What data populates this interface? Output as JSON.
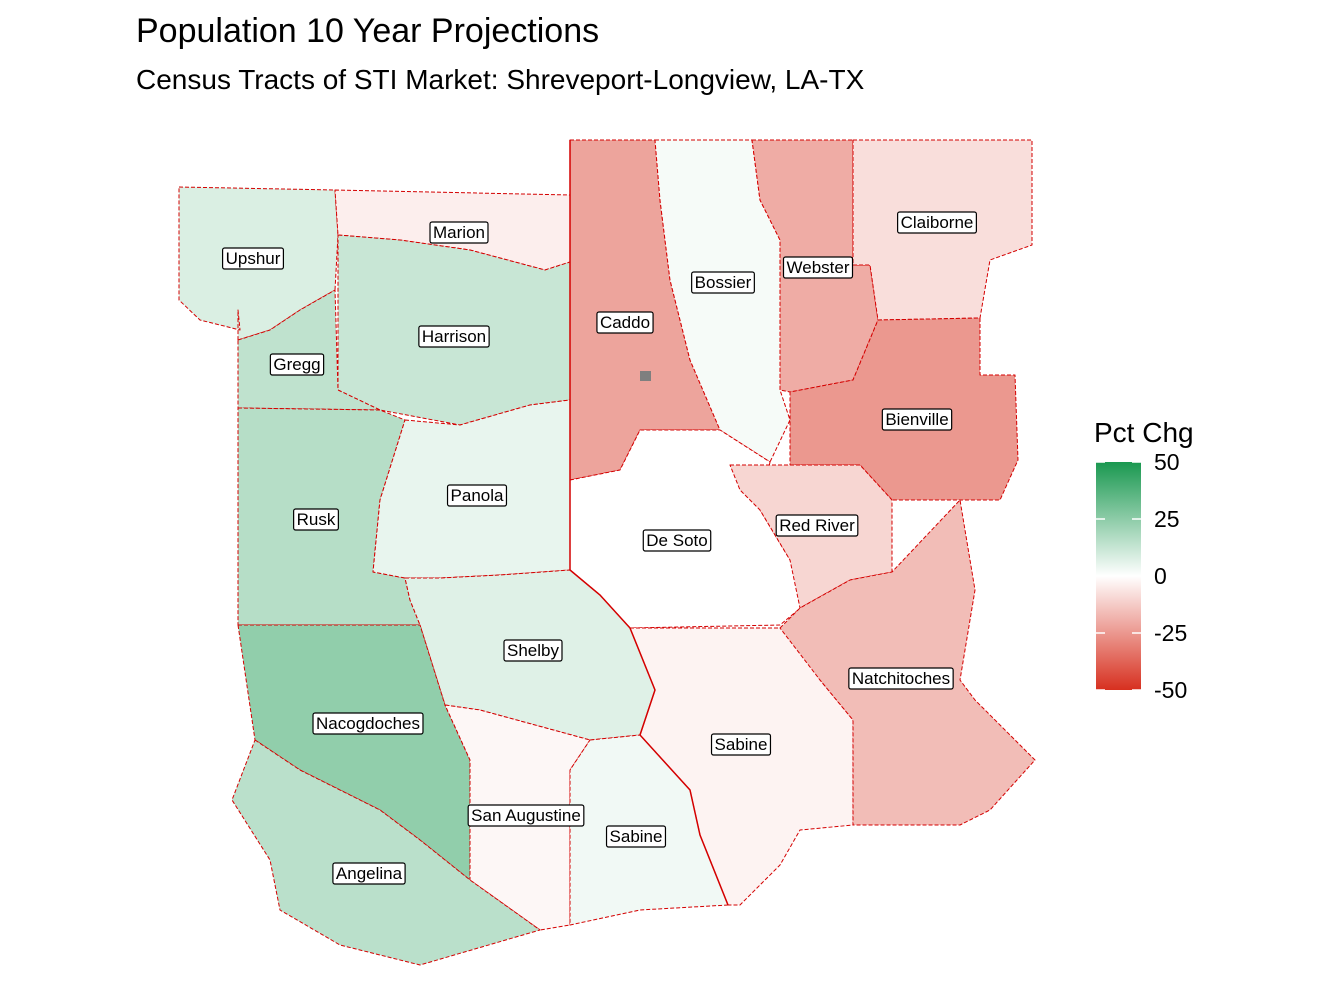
{
  "title": "Population 10 Year Projections",
  "subtitle": "Census Tracts of STI Market: Shreveport-Longview, LA-TX",
  "legend": {
    "title": "Pct Chg",
    "ticks": [
      50,
      25,
      0,
      -25,
      -50
    ],
    "range": [
      -50,
      50
    ],
    "colors": {
      "low": "#d7301f",
      "mid": "#ffffff",
      "high": "#1a9850"
    }
  },
  "counties": [
    {
      "name": "Upshur",
      "pct": 8
    },
    {
      "name": "Marion",
      "pct": -4
    },
    {
      "name": "Harrison",
      "pct": 12
    },
    {
      "name": "Gregg",
      "pct": 14
    },
    {
      "name": "Caddo",
      "pct": -22
    },
    {
      "name": "Bossier",
      "pct": 2
    },
    {
      "name": "Webster",
      "pct": -20
    },
    {
      "name": "Claiborne",
      "pct": -8
    },
    {
      "name": "Bienville",
      "pct": -25
    },
    {
      "name": "Rusk",
      "pct": 16
    },
    {
      "name": "Panola",
      "pct": 5
    },
    {
      "name": "De Soto",
      "pct": 0
    },
    {
      "name": "Red River",
      "pct": -10
    },
    {
      "name": "Shelby",
      "pct": 7
    },
    {
      "name": "Nacogdoches",
      "pct": 24
    },
    {
      "name": "Sabine",
      "pct": -3
    },
    {
      "name": "Natchitoches",
      "pct": -16
    },
    {
      "name": "San Augustine",
      "pct": -2
    },
    {
      "name": "Sabine",
      "pct": 3
    },
    {
      "name": "Angelina",
      "pct": 15
    }
  ]
}
